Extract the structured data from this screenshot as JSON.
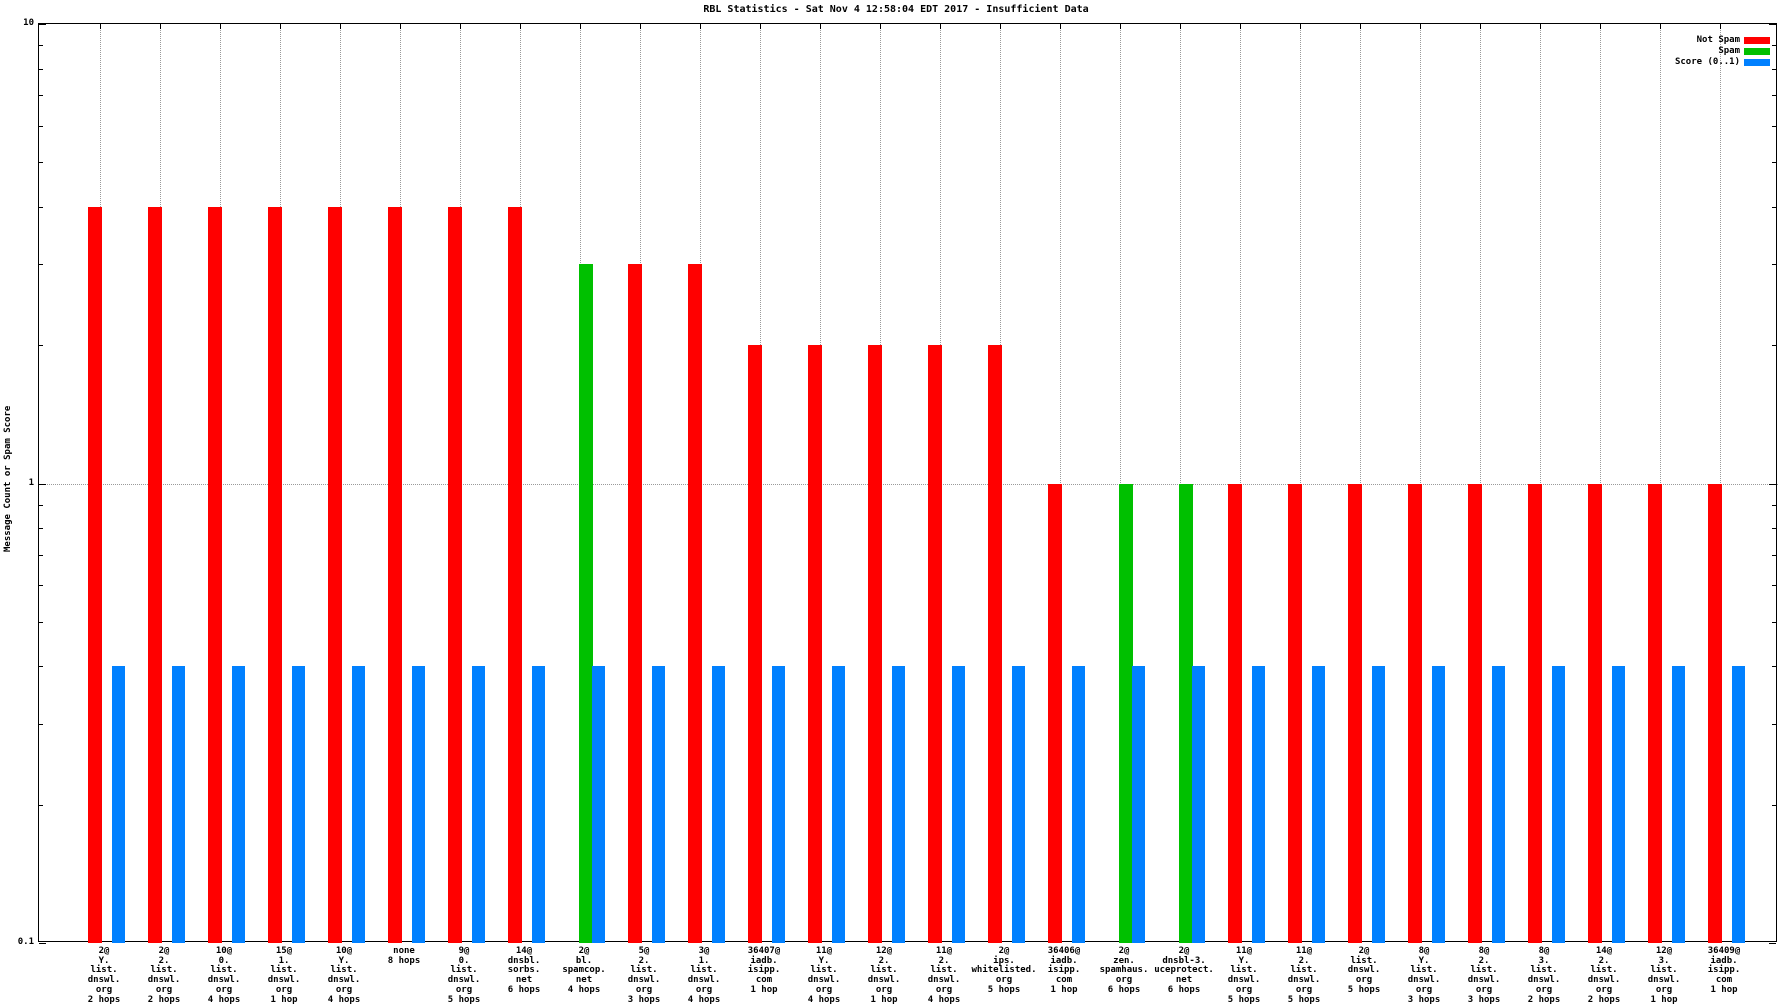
{
  "chart_data": {
    "type": "bar",
    "title": "RBL Statistics - Sat Nov  4 12:58:04 EDT 2017 - Insufficient Data",
    "ylabel": "Message Count or Spam Score",
    "yscale": "log",
    "ylim": [
      0.1,
      10
    ],
    "ytick_labels": [
      {
        "value": 10,
        "label": "10"
      },
      {
        "value": 1,
        "label": "1"
      },
      {
        "value": 0.1,
        "label": "0.1"
      }
    ],
    "grid": {
      "horizontal_line_at": 1,
      "vertical_line_per_group": true,
      "style": "dotted"
    },
    "legend_position": "top-right-inside",
    "colors": {
      "not_spam": "#ff0000",
      "spam": "#00c000",
      "score": "#0080ff",
      "grid": "#9a9a9a",
      "axis": "#000000"
    },
    "legend": [
      {
        "label": "Not Spam",
        "series": "not_spam",
        "color": "#ff0000"
      },
      {
        "label": "Spam",
        "series": "spam",
        "color": "#00c000"
      },
      {
        "label": "Score (0..1)",
        "series": "score",
        "color": "#0080ff"
      }
    ],
    "groups": [
      {
        "label_lines": [
          "2@",
          "Y.",
          "list.",
          "dnswl.",
          "org",
          "2 hops"
        ],
        "not_spam": 4,
        "spam": null,
        "score": 0.4
      },
      {
        "label_lines": [
          "2@",
          "2.",
          "list.",
          "dnswl.",
          "org",
          "2 hops"
        ],
        "not_spam": 4,
        "spam": null,
        "score": 0.4
      },
      {
        "label_lines": [
          "10@",
          "0.",
          "list.",
          "dnswl.",
          "org",
          "4 hops"
        ],
        "not_spam": 4,
        "spam": null,
        "score": 0.4
      },
      {
        "label_lines": [
          "15@",
          "1.",
          "list.",
          "dnswl.",
          "org",
          "1 hop"
        ],
        "not_spam": 4,
        "spam": null,
        "score": 0.4
      },
      {
        "label_lines": [
          "10@",
          "Y.",
          "list.",
          "dnswl.",
          "org",
          "4 hops"
        ],
        "not_spam": 4,
        "spam": null,
        "score": 0.4
      },
      {
        "label_lines": [
          "none",
          "8 hops"
        ],
        "not_spam": 4,
        "spam": null,
        "score": 0.4
      },
      {
        "label_lines": [
          "9@",
          "0.",
          "list.",
          "dnswl.",
          "org",
          "5 hops"
        ],
        "not_spam": 4,
        "spam": null,
        "score": 0.4
      },
      {
        "label_lines": [
          "14@",
          "dnsbl.",
          "sorbs.",
          "net",
          "6 hops"
        ],
        "not_spam": 4,
        "spam": null,
        "score": 0.4
      },
      {
        "label_lines": [
          "2@",
          "bl.",
          "spamcop.",
          "net",
          "4 hops"
        ],
        "not_spam": null,
        "spam": 3,
        "score": 0.4
      },
      {
        "label_lines": [
          "5@",
          "2.",
          "list.",
          "dnswl.",
          "org",
          "3 hops"
        ],
        "not_spam": 3,
        "spam": null,
        "score": 0.4
      },
      {
        "label_lines": [
          "3@",
          "1.",
          "list.",
          "dnswl.",
          "org",
          "4 hops"
        ],
        "not_spam": 3,
        "spam": null,
        "score": 0.4
      },
      {
        "label_lines": [
          "36407@",
          "iadb.",
          "isipp.",
          "com",
          "1 hop"
        ],
        "not_spam": 2,
        "spam": null,
        "score": 0.4
      },
      {
        "label_lines": [
          "11@",
          "Y.",
          "list.",
          "dnswl.",
          "org",
          "4 hops"
        ],
        "not_spam": 2,
        "spam": null,
        "score": 0.4
      },
      {
        "label_lines": [
          "12@",
          "2.",
          "list.",
          "dnswl.",
          "org",
          "1 hop"
        ],
        "not_spam": 2,
        "spam": null,
        "score": 0.4
      },
      {
        "label_lines": [
          "11@",
          "2.",
          "list.",
          "dnswl.",
          "org",
          "4 hops"
        ],
        "not_spam": 2,
        "spam": null,
        "score": 0.4
      },
      {
        "label_lines": [
          "2@",
          "ips.",
          "whitelisted.",
          "org",
          "5 hops"
        ],
        "not_spam": 2,
        "spam": null,
        "score": 0.4
      },
      {
        "label_lines": [
          "36406@",
          "iadb.",
          "isipp.",
          "com",
          "1 hop"
        ],
        "not_spam": 1,
        "spam": null,
        "score": 0.4
      },
      {
        "label_lines": [
          "2@",
          "zen.",
          "spamhaus.",
          "org",
          "6 hops"
        ],
        "not_spam": null,
        "spam": 1,
        "score": 0.4
      },
      {
        "label_lines": [
          "2@",
          "dnsbl-3.",
          "uceprotect.",
          "net",
          "6 hops"
        ],
        "not_spam": null,
        "spam": 1,
        "score": 0.4
      },
      {
        "label_lines": [
          "11@",
          "Y.",
          "list.",
          "dnswl.",
          "org",
          "5 hops"
        ],
        "not_spam": 1,
        "spam": null,
        "score": 0.4
      },
      {
        "label_lines": [
          "11@",
          "2.",
          "list.",
          "dnswl.",
          "org",
          "5 hops"
        ],
        "not_spam": 1,
        "spam": null,
        "score": 0.4
      },
      {
        "label_lines": [
          "2@",
          "list.",
          "dnswl.",
          "org",
          "5 hops"
        ],
        "not_spam": 1,
        "spam": null,
        "score": 0.4
      },
      {
        "label_lines": [
          "8@",
          "Y.",
          "list.",
          "dnswl.",
          "org",
          "3 hops"
        ],
        "not_spam": 1,
        "spam": null,
        "score": 0.4
      },
      {
        "label_lines": [
          "8@",
          "2.",
          "list.",
          "dnswl.",
          "org",
          "3 hops"
        ],
        "not_spam": 1,
        "spam": null,
        "score": 0.4
      },
      {
        "label_lines": [
          "8@",
          "3.",
          "list.",
          "dnswl.",
          "org",
          "2 hops"
        ],
        "not_spam": 1,
        "spam": null,
        "score": 0.4
      },
      {
        "label_lines": [
          "14@",
          "2.",
          "list.",
          "dnswl.",
          "org",
          "2 hops"
        ],
        "not_spam": 1,
        "spam": null,
        "score": 0.4
      },
      {
        "label_lines": [
          "12@",
          "3.",
          "list.",
          "dnswl.",
          "org",
          "1 hop"
        ],
        "not_spam": 1,
        "spam": null,
        "score": 0.4
      },
      {
        "label_lines": [
          "36409@",
          "iadb.",
          "isipp.",
          "com",
          "1 hop"
        ],
        "not_spam": 1,
        "spam": null,
        "score": 0.4
      }
    ]
  }
}
